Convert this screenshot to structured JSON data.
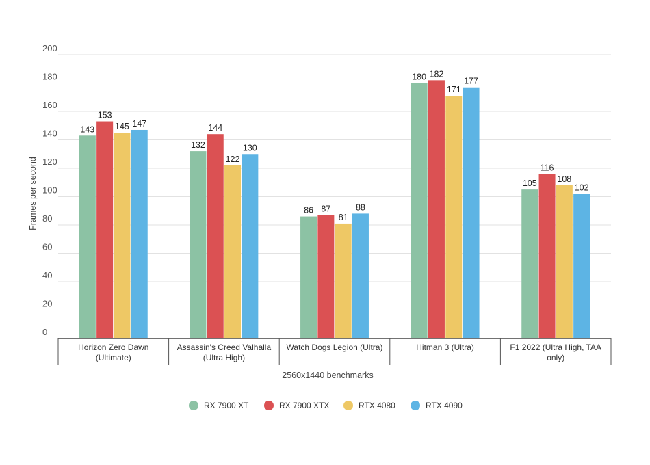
{
  "chart_data": {
    "type": "bar",
    "title": "",
    "xlabel": "2560x1440 benchmarks",
    "ylabel": "Frames per second",
    "ylim": [
      0,
      200
    ],
    "yticks": [
      0,
      20,
      40,
      60,
      80,
      100,
      120,
      140,
      160,
      180,
      200
    ],
    "grid": true,
    "legend_position": "bottom",
    "categories": [
      [
        "Horizon Zero Dawn",
        "(Ultimate)"
      ],
      [
        "Assassin's Creed Valhalla",
        "(Ultra High)"
      ],
      [
        "Watch Dogs Legion (Ultra)"
      ],
      [
        "Hitman 3 (Ultra)"
      ],
      [
        "F1 2022 (Ultra High, TAA",
        "only)"
      ]
    ],
    "series": [
      {
        "name": "RX 7900 XT",
        "color": "#8cc2a4",
        "values": [
          143,
          132,
          86,
          180,
          105
        ]
      },
      {
        "name": "RX 7900 XTX",
        "color": "#db5153",
        "values": [
          153,
          144,
          87,
          182,
          116
        ]
      },
      {
        "name": "RTX 4080",
        "color": "#eec865",
        "values": [
          145,
          122,
          81,
          171,
          108
        ]
      },
      {
        "name": "RTX 4090",
        "color": "#5db4e4",
        "values": [
          147,
          130,
          88,
          177,
          102
        ]
      }
    ]
  }
}
